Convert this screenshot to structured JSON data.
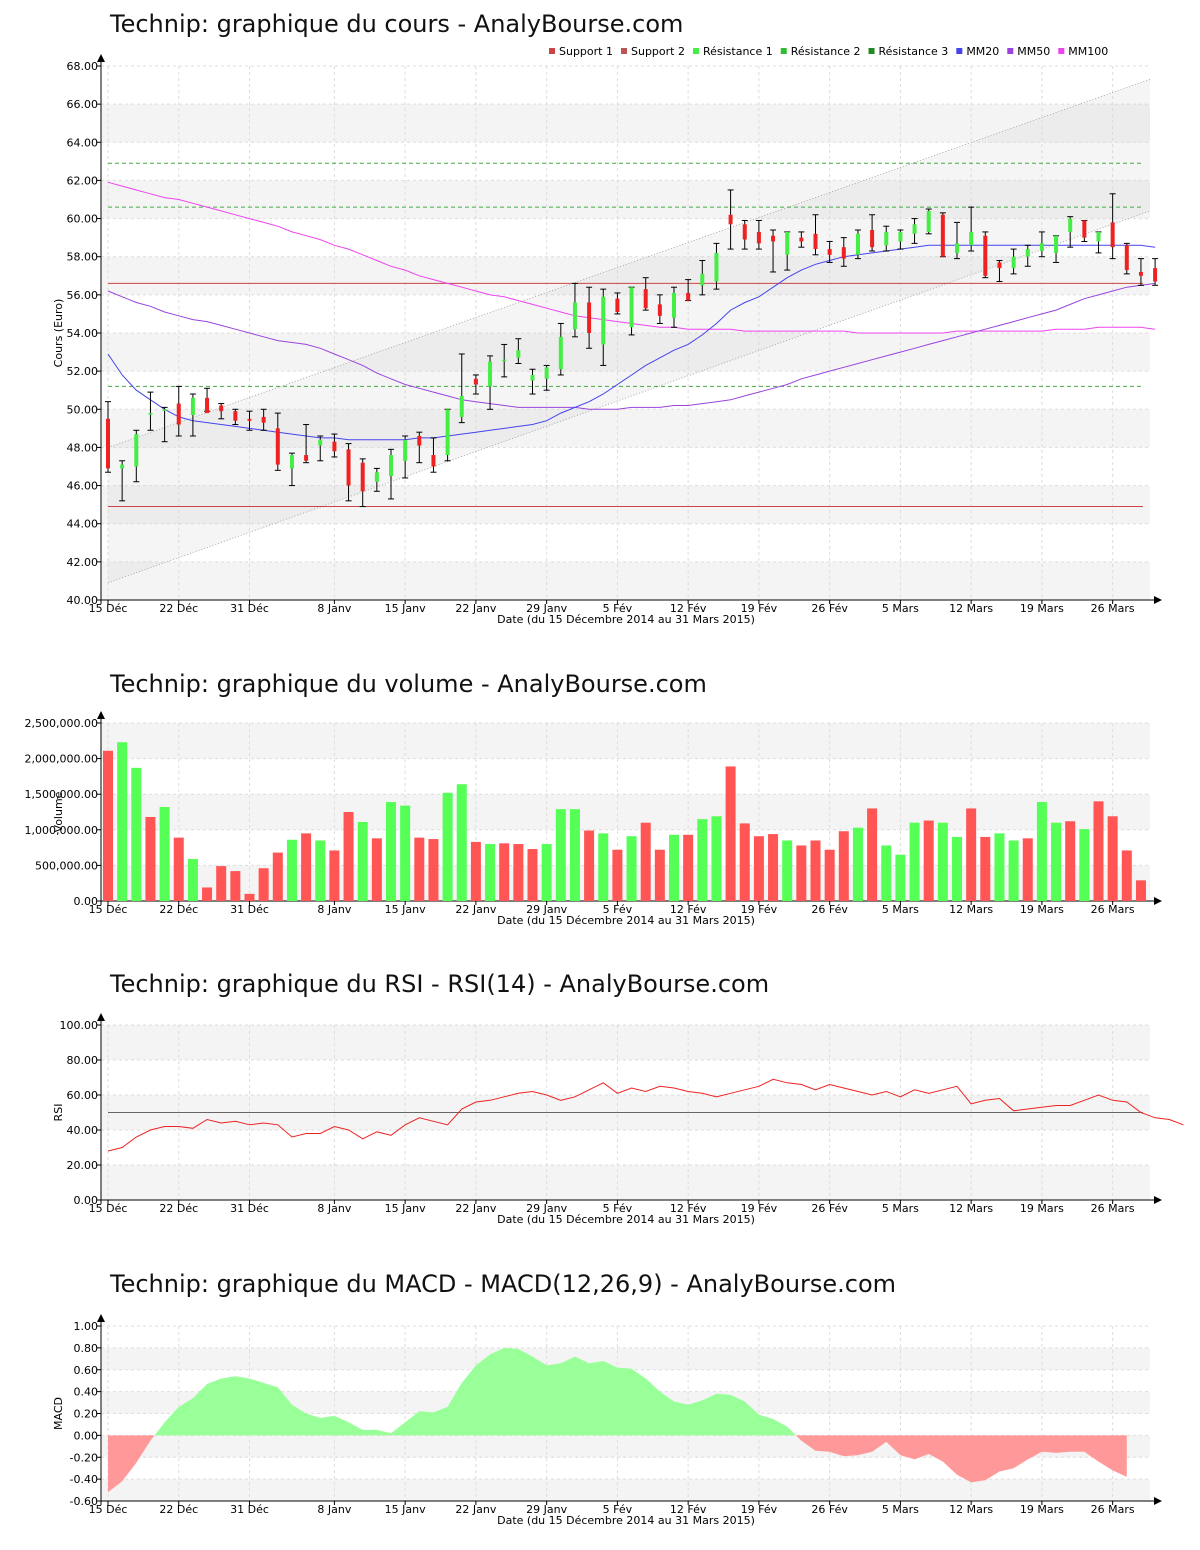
{
  "shared": {
    "x_ticks": [
      "15 Déc",
      "22 Déc",
      "31 Déc",
      "8 Janv",
      "15 Janv",
      "22 Janv",
      "29 Janv",
      "5 Fév",
      "12 Fév",
      "19 Fév",
      "26 Fév",
      "5 Mars",
      "12 Mars",
      "19 Mars",
      "26 Mars"
    ],
    "x_label": "Date (du 15 Décembre 2014 au 31 Mars 2015)",
    "colors": {
      "up": "#44ee44",
      "down": "#ee2222",
      "vol_up": "#55ff55",
      "vol_down": "#ff5555",
      "mm20": "#4444ee",
      "mm50": "#9944dd",
      "mm100": "#ee44ee",
      "support": "#cc4444",
      "resistance": "#44aa44"
    }
  },
  "titles": {
    "price": "Technip: graphique du cours - AnalyBourse.com",
    "volume": "Technip: graphique du volume - AnalyBourse.com",
    "rsi": "Technip: graphique du RSI - RSI(14) - AnalyBourse.com",
    "macd": "Technip: graphique du MACD - MACD(12,26,9) - AnalyBourse.com"
  },
  "legend": [
    "Support 1",
    "Support 2",
    "Résistance 1",
    "Résistance 2",
    "Résistance 3",
    "MM20",
    "MM50",
    "MM100"
  ],
  "chart_data": [
    {
      "type": "candlestick",
      "title": "Technip: graphique du cours - AnalyBourse.com",
      "ylabel": "Cours (Euro)",
      "xlabel": "Date (du 15 Décembre 2014 au 31 Mars 2015)",
      "ylim": [
        40,
        68
      ],
      "y_ticks": [
        "40.00",
        "42.00",
        "44.00",
        "46.00",
        "48.00",
        "50.00",
        "52.00",
        "54.00",
        "56.00",
        "58.00",
        "60.00",
        "62.00",
        "64.00",
        "66.00",
        "68.00"
      ],
      "ohlc": [
        [
          49.5,
          50.4,
          46.7,
          46.9
        ],
        [
          46.9,
          47.3,
          45.2,
          47.1
        ],
        [
          47.0,
          48.9,
          46.2,
          48.7
        ],
        [
          49.8,
          50.9,
          48.9,
          49.8
        ],
        [
          50.0,
          50.1,
          48.3,
          50.0
        ],
        [
          50.3,
          51.2,
          48.6,
          49.2
        ],
        [
          49.7,
          50.8,
          48.6,
          50.6
        ],
        [
          50.6,
          51.1,
          49.9,
          49.8
        ],
        [
          50.2,
          50.3,
          49.5,
          49.9
        ],
        [
          49.9,
          50.0,
          49.2,
          49.4
        ],
        [
          49.5,
          49.9,
          48.9,
          49.4
        ],
        [
          49.6,
          50.0,
          48.9,
          49.3
        ],
        [
          49.0,
          49.8,
          46.8,
          47.1
        ],
        [
          46.9,
          47.7,
          46.0,
          47.6
        ],
        [
          47.6,
          49.2,
          47.2,
          47.3
        ],
        [
          48.1,
          48.6,
          47.3,
          48.4
        ],
        [
          48.3,
          48.7,
          47.5,
          47.8
        ],
        [
          47.9,
          48.2,
          45.2,
          46.0
        ],
        [
          47.2,
          47.4,
          44.9,
          45.7
        ],
        [
          46.2,
          46.9,
          45.7,
          46.7
        ],
        [
          46.5,
          47.9,
          45.3,
          47.6
        ],
        [
          47.3,
          48.6,
          46.4,
          48.4
        ],
        [
          48.6,
          48.8,
          47.2,
          48.1
        ],
        [
          47.6,
          48.5,
          46.7,
          47.0
        ],
        [
          47.6,
          50.0,
          47.3,
          50.0
        ],
        [
          49.6,
          52.9,
          49.3,
          50.7
        ],
        [
          51.6,
          51.8,
          50.8,
          51.3
        ],
        [
          51.2,
          52.8,
          50.0,
          52.5
        ],
        [
          52.6,
          53.4,
          51.7,
          52.6
        ],
        [
          52.7,
          53.7,
          52.4,
          53.1
        ],
        [
          51.5,
          52.1,
          50.8,
          51.8
        ],
        [
          51.6,
          52.3,
          51.0,
          52.2
        ],
        [
          52.1,
          54.5,
          51.8,
          53.8
        ],
        [
          54.2,
          56.6,
          53.8,
          55.6
        ],
        [
          55.6,
          56.4,
          53.2,
          54.0
        ],
        [
          53.4,
          56.3,
          52.3,
          55.9
        ],
        [
          55.8,
          56.1,
          55.0,
          55.1
        ],
        [
          54.3,
          56.4,
          53.9,
          56.4
        ],
        [
          56.3,
          56.9,
          55.2,
          55.3
        ],
        [
          55.5,
          56.0,
          54.5,
          54.9
        ],
        [
          54.8,
          56.4,
          54.3,
          56.1
        ],
        [
          56.1,
          56.8,
          55.7,
          55.7
        ],
        [
          56.5,
          57.8,
          56.0,
          57.1
        ],
        [
          56.7,
          58.7,
          56.3,
          58.2
        ],
        [
          60.2,
          61.5,
          58.4,
          59.7
        ],
        [
          59.7,
          59.9,
          58.4,
          58.9
        ],
        [
          59.3,
          59.9,
          58.4,
          58.7
        ],
        [
          59.1,
          59.4,
          57.2,
          58.8
        ],
        [
          58.1,
          59.3,
          57.3,
          59.3
        ],
        [
          59.0,
          59.3,
          58.5,
          58.8
        ],
        [
          59.2,
          60.2,
          58.1,
          58.4
        ],
        [
          58.4,
          58.8,
          57.7,
          58.1
        ],
        [
          58.5,
          59.0,
          57.5,
          57.9
        ],
        [
          58.1,
          59.4,
          57.9,
          59.2
        ],
        [
          59.4,
          60.2,
          58.3,
          58.5
        ],
        [
          58.6,
          59.6,
          58.3,
          59.3
        ],
        [
          58.8,
          59.4,
          58.4,
          59.3
        ],
        [
          59.2,
          60.0,
          58.7,
          59.7
        ],
        [
          59.3,
          60.5,
          59.2,
          60.4
        ],
        [
          60.2,
          60.3,
          58.0,
          58.0
        ],
        [
          58.2,
          59.8,
          57.9,
          58.7
        ],
        [
          58.6,
          60.6,
          58.3,
          59.3
        ],
        [
          59.1,
          59.3,
          56.9,
          57.0
        ],
        [
          57.7,
          57.8,
          56.7,
          57.4
        ],
        [
          57.4,
          58.4,
          57.1,
          58.0
        ],
        [
          58.0,
          58.6,
          57.5,
          58.4
        ],
        [
          58.3,
          59.3,
          58.0,
          58.7
        ],
        [
          58.2,
          59.1,
          57.7,
          59.1
        ],
        [
          59.3,
          60.1,
          58.5,
          60.0
        ],
        [
          59.9,
          59.9,
          58.8,
          59.0
        ],
        [
          58.8,
          59.3,
          58.2,
          59.3
        ],
        [
          59.8,
          61.3,
          57.9,
          58.5
        ],
        [
          58.6,
          58.7,
          57.1,
          57.3
        ],
        [
          57.2,
          57.9,
          56.5,
          57.0
        ],
        [
          57.4,
          57.9,
          56.5,
          56.7
        ]
      ],
      "support": [
        56.6,
        44.9
      ],
      "resistance": [
        51.2,
        60.6,
        62.9
      ],
      "channel": {
        "upper": [
          48.0,
          67.3
        ],
        "lower": [
          40.9,
          60.4
        ]
      },
      "ma": {
        "mm20": [
          52.9,
          51.8,
          51.0,
          50.5,
          50.0,
          49.6,
          49.4,
          49.3,
          49.2,
          49.1,
          49.0,
          48.9,
          48.8,
          48.7,
          48.6,
          48.5,
          48.5,
          48.4,
          48.4,
          48.4,
          48.4,
          48.4,
          48.5,
          48.5,
          48.6,
          48.7,
          48.8,
          48.9,
          49.0,
          49.1,
          49.2,
          49.4,
          49.8,
          50.1,
          50.4,
          50.8,
          51.3,
          51.8,
          52.3,
          52.7,
          53.1,
          53.4,
          53.9,
          54.5,
          55.2,
          55.6,
          55.9,
          56.4,
          56.9,
          57.3,
          57.6,
          57.8,
          58.0,
          58.1,
          58.2,
          58.3,
          58.4,
          58.5,
          58.6,
          58.6,
          58.6,
          58.6,
          58.6,
          58.6,
          58.6,
          58.6,
          58.6,
          58.6,
          58.6,
          58.6,
          58.6,
          58.6,
          58.6,
          58.6,
          58.5
        ],
        "mm50": [
          56.2,
          55.9,
          55.6,
          55.4,
          55.1,
          54.9,
          54.7,
          54.6,
          54.4,
          54.2,
          54.0,
          53.8,
          53.6,
          53.5,
          53.4,
          53.2,
          52.9,
          52.6,
          52.3,
          51.9,
          51.6,
          51.3,
          51.1,
          50.9,
          50.7,
          50.5,
          50.4,
          50.3,
          50.2,
          50.1,
          50.1,
          50.1,
          50.1,
          50.1,
          50.0,
          50.0,
          50.0,
          50.1,
          50.1,
          50.1,
          50.2,
          50.2,
          50.3,
          50.4,
          50.5,
          50.7,
          50.9,
          51.1,
          51.3,
          51.6,
          51.8,
          52.0,
          52.2,
          52.4,
          52.6,
          52.8,
          53.0,
          53.2,
          53.4,
          53.6,
          53.8,
          54.0,
          54.2,
          54.4,
          54.6,
          54.8,
          55.0,
          55.2,
          55.5,
          55.8,
          56.0,
          56.2,
          56.4,
          56.5,
          56.6
        ],
        "mm100": [
          61.9,
          61.7,
          61.5,
          61.3,
          61.1,
          61.0,
          60.8,
          60.6,
          60.4,
          60.2,
          60.0,
          59.8,
          59.6,
          59.3,
          59.1,
          58.9,
          58.6,
          58.4,
          58.1,
          57.8,
          57.5,
          57.3,
          57.0,
          56.8,
          56.6,
          56.4,
          56.2,
          56.0,
          55.9,
          55.7,
          55.5,
          55.3,
          55.1,
          54.9,
          54.8,
          54.7,
          54.6,
          54.5,
          54.4,
          54.3,
          54.3,
          54.2,
          54.2,
          54.2,
          54.2,
          54.1,
          54.1,
          54.1,
          54.1,
          54.1,
          54.1,
          54.1,
          54.1,
          54.0,
          54.0,
          54.0,
          54.0,
          54.0,
          54.0,
          54.0,
          54.1,
          54.1,
          54.1,
          54.1,
          54.1,
          54.1,
          54.1,
          54.2,
          54.2,
          54.2,
          54.3,
          54.3,
          54.3,
          54.3,
          54.2
        ]
      }
    },
    {
      "type": "bar",
      "title": "Technip: graphique du volume - AnalyBourse.com",
      "ylabel": "Volume",
      "xlabel": "Date (du 15 Décembre 2014 au 31 Mars 2015)",
      "ylim": [
        0,
        2500000
      ],
      "y_ticks": [
        "0.00",
        "500,000.00",
        "1,000,000.00",
        "1,500,000.00",
        "2,000,000.00",
        "2,500,000.00"
      ],
      "values": [
        2110000,
        2230000,
        1870000,
        1180000,
        1320000,
        890000,
        590000,
        190000,
        490000,
        420000,
        100000,
        460000,
        680000,
        860000,
        950000,
        850000,
        710000,
        1250000,
        1110000,
        880000,
        1390000,
        1340000,
        890000,
        870000,
        1520000,
        1640000,
        830000,
        800000,
        810000,
        800000,
        730000,
        800000,
        1290000,
        1290000,
        990000,
        950000,
        720000,
        910000,
        1100000,
        720000,
        930000,
        930000,
        1150000,
        1190000,
        1890000,
        1090000,
        910000,
        940000,
        850000,
        780000,
        850000,
        720000,
        980000,
        1030000,
        1300000,
        780000,
        650000,
        1100000,
        1130000,
        1100000,
        900000,
        1300000,
        900000,
        950000,
        850000,
        880000,
        1390000,
        1100000,
        1120000,
        1010000,
        1400000,
        1190000,
        710000,
        290000
      ],
      "colors_up": [
        false,
        true,
        true,
        false,
        true,
        false,
        true,
        false,
        false,
        false,
        false,
        false,
        false,
        true,
        false,
        true,
        false,
        false,
        true,
        false,
        true,
        true,
        false,
        false,
        true,
        true,
        false,
        true,
        false,
        false,
        false,
        true,
        true,
        true,
        false,
        true,
        false,
        true,
        false,
        false,
        true,
        false,
        true,
        true,
        false,
        false,
        false,
        false,
        true,
        false,
        false,
        false,
        false,
        true,
        false,
        true,
        true,
        true,
        false,
        true,
        true,
        false,
        false,
        true,
        true,
        false,
        true,
        true,
        false,
        true,
        false,
        false,
        false,
        false
      ]
    },
    {
      "type": "line",
      "title": "Technip: graphique du RSI - RSI(14) - AnalyBourse.com",
      "ylabel": "RSI",
      "xlabel": "Date (du 15 Décembre 2014 au 31 Mars 2015)",
      "ylim": [
        0,
        100
      ],
      "y_ticks": [
        "0.00",
        "20.00",
        "40.00",
        "60.00",
        "80.00",
        "100.00"
      ],
      "reference_line": 50,
      "values": [
        28,
        30,
        36,
        40,
        42,
        42,
        41,
        46,
        44,
        45,
        43,
        44,
        43,
        36,
        38,
        38,
        42,
        40,
        35,
        39,
        37,
        43,
        47,
        45,
        43,
        52,
        56,
        57,
        59,
        61,
        62,
        60,
        57,
        59,
        63,
        67,
        61,
        64,
        62,
        65,
        64,
        62,
        61,
        59,
        61,
        63,
        65,
        69,
        67,
        66,
        63,
        66,
        64,
        62,
        60,
        62,
        59,
        63,
        61,
        63,
        65,
        55,
        57,
        58,
        51,
        52,
        53,
        54,
        54,
        57,
        60,
        57,
        56,
        50,
        47,
        46,
        43
      ]
    },
    {
      "type": "area",
      "title": "Technip: graphique du MACD - MACD(12,26,9) - AnalyBourse.com",
      "ylabel": "MACD",
      "xlabel": "Date (du 15 Décembre 2014 au 31 Mars 2015)",
      "ylim": [
        -0.6,
        1.0
      ],
      "y_ticks": [
        "-0.60",
        "-0.40",
        "-0.20",
        "0.00",
        "0.20",
        "0.40",
        "0.60",
        "0.80",
        "1.00"
      ],
      "values": [
        -0.52,
        -0.42,
        -0.25,
        -0.05,
        0.12,
        0.26,
        0.34,
        0.47,
        0.52,
        0.54,
        0.52,
        0.48,
        0.44,
        0.28,
        0.2,
        0.16,
        0.18,
        0.12,
        0.05,
        0.05,
        0.02,
        0.12,
        0.22,
        0.21,
        0.26,
        0.48,
        0.64,
        0.74,
        0.8,
        0.79,
        0.72,
        0.64,
        0.66,
        0.72,
        0.66,
        0.68,
        0.62,
        0.61,
        0.52,
        0.4,
        0.31,
        0.28,
        0.32,
        0.38,
        0.37,
        0.31,
        0.19,
        0.15,
        0.08,
        -0.05,
        -0.14,
        -0.15,
        -0.19,
        -0.18,
        -0.15,
        -0.06,
        -0.18,
        -0.22,
        -0.17,
        -0.24,
        -0.36,
        -0.43,
        -0.41,
        -0.33,
        -0.3,
        -0.22,
        -0.15,
        -0.16,
        -0.15,
        -0.15,
        -0.24,
        -0.32,
        -0.38
      ],
      "positive_color": "#99ff99",
      "negative_color": "#ff9999"
    }
  ]
}
